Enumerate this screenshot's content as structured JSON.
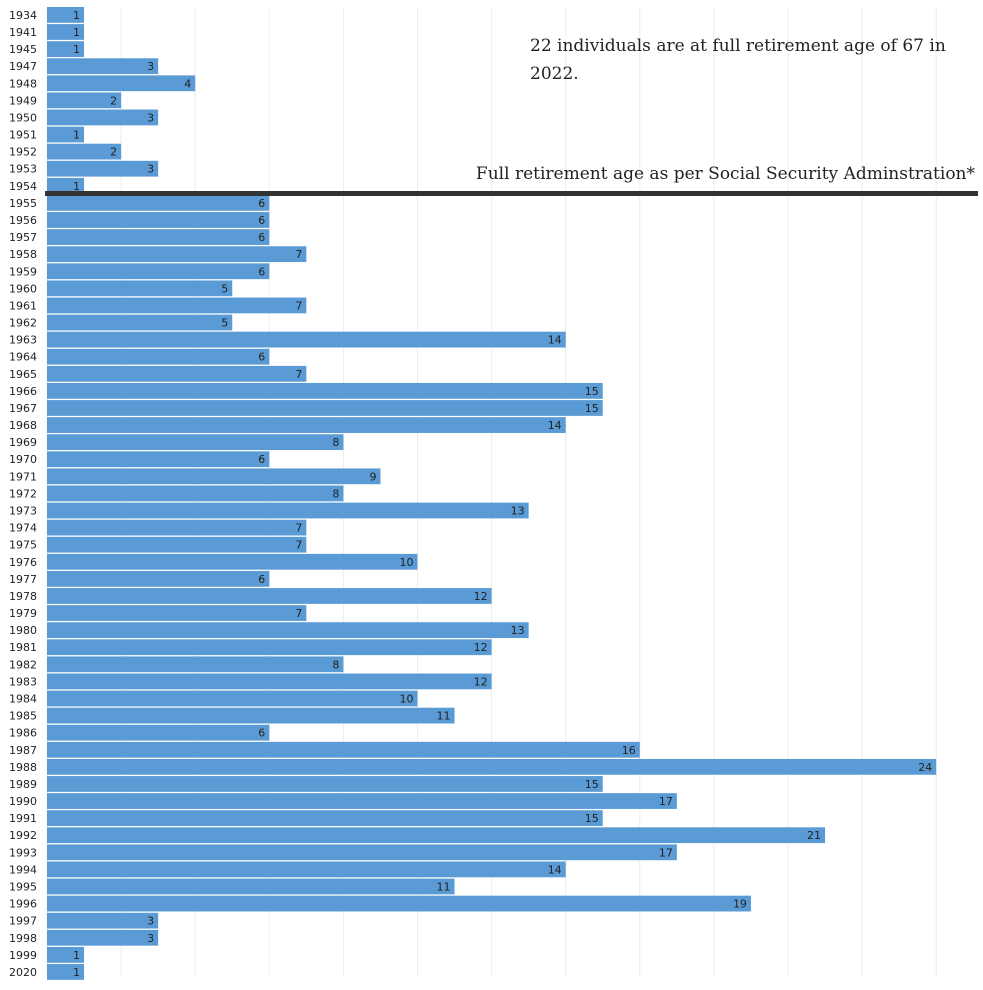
{
  "chart_data": {
    "type": "bar",
    "orientation": "horizontal",
    "categories": [
      "1934",
      "1941",
      "1945",
      "1947",
      "1948",
      "1949",
      "1950",
      "1951",
      "1952",
      "1953",
      "1954",
      "1955",
      "1956",
      "1957",
      "1958",
      "1959",
      "1960",
      "1961",
      "1962",
      "1963",
      "1964",
      "1965",
      "1966",
      "1967",
      "1968",
      "1969",
      "1970",
      "1971",
      "1972",
      "1973",
      "1974",
      "1975",
      "1976",
      "1977",
      "1978",
      "1979",
      "1980",
      "1981",
      "1982",
      "1983",
      "1984",
      "1985",
      "1986",
      "1987",
      "1988",
      "1989",
      "1990",
      "1991",
      "1992",
      "1993",
      "1994",
      "1995",
      "1996",
      "1997",
      "1998",
      "1999",
      "2020"
    ],
    "values": [
      1,
      1,
      1,
      3,
      4,
      2,
      3,
      1,
      2,
      3,
      1,
      6,
      6,
      6,
      7,
      6,
      5,
      7,
      5,
      14,
      6,
      7,
      15,
      15,
      14,
      8,
      6,
      9,
      8,
      13,
      7,
      7,
      10,
      6,
      12,
      7,
      13,
      12,
      8,
      12,
      10,
      11,
      6,
      16,
      24,
      15,
      17,
      15,
      21,
      17,
      14,
      11,
      19,
      3,
      3,
      1,
      1
    ],
    "xlim": [
      0,
      25
    ],
    "grid": true,
    "bar_color": "#5b9bd5",
    "reference_line": {
      "after_category": "1954",
      "label": "Full retirement age as per Social Security Adminstration*",
      "color": "#333333"
    },
    "annotation": "22 individuals are at full retirement age of 67 in 2022."
  }
}
